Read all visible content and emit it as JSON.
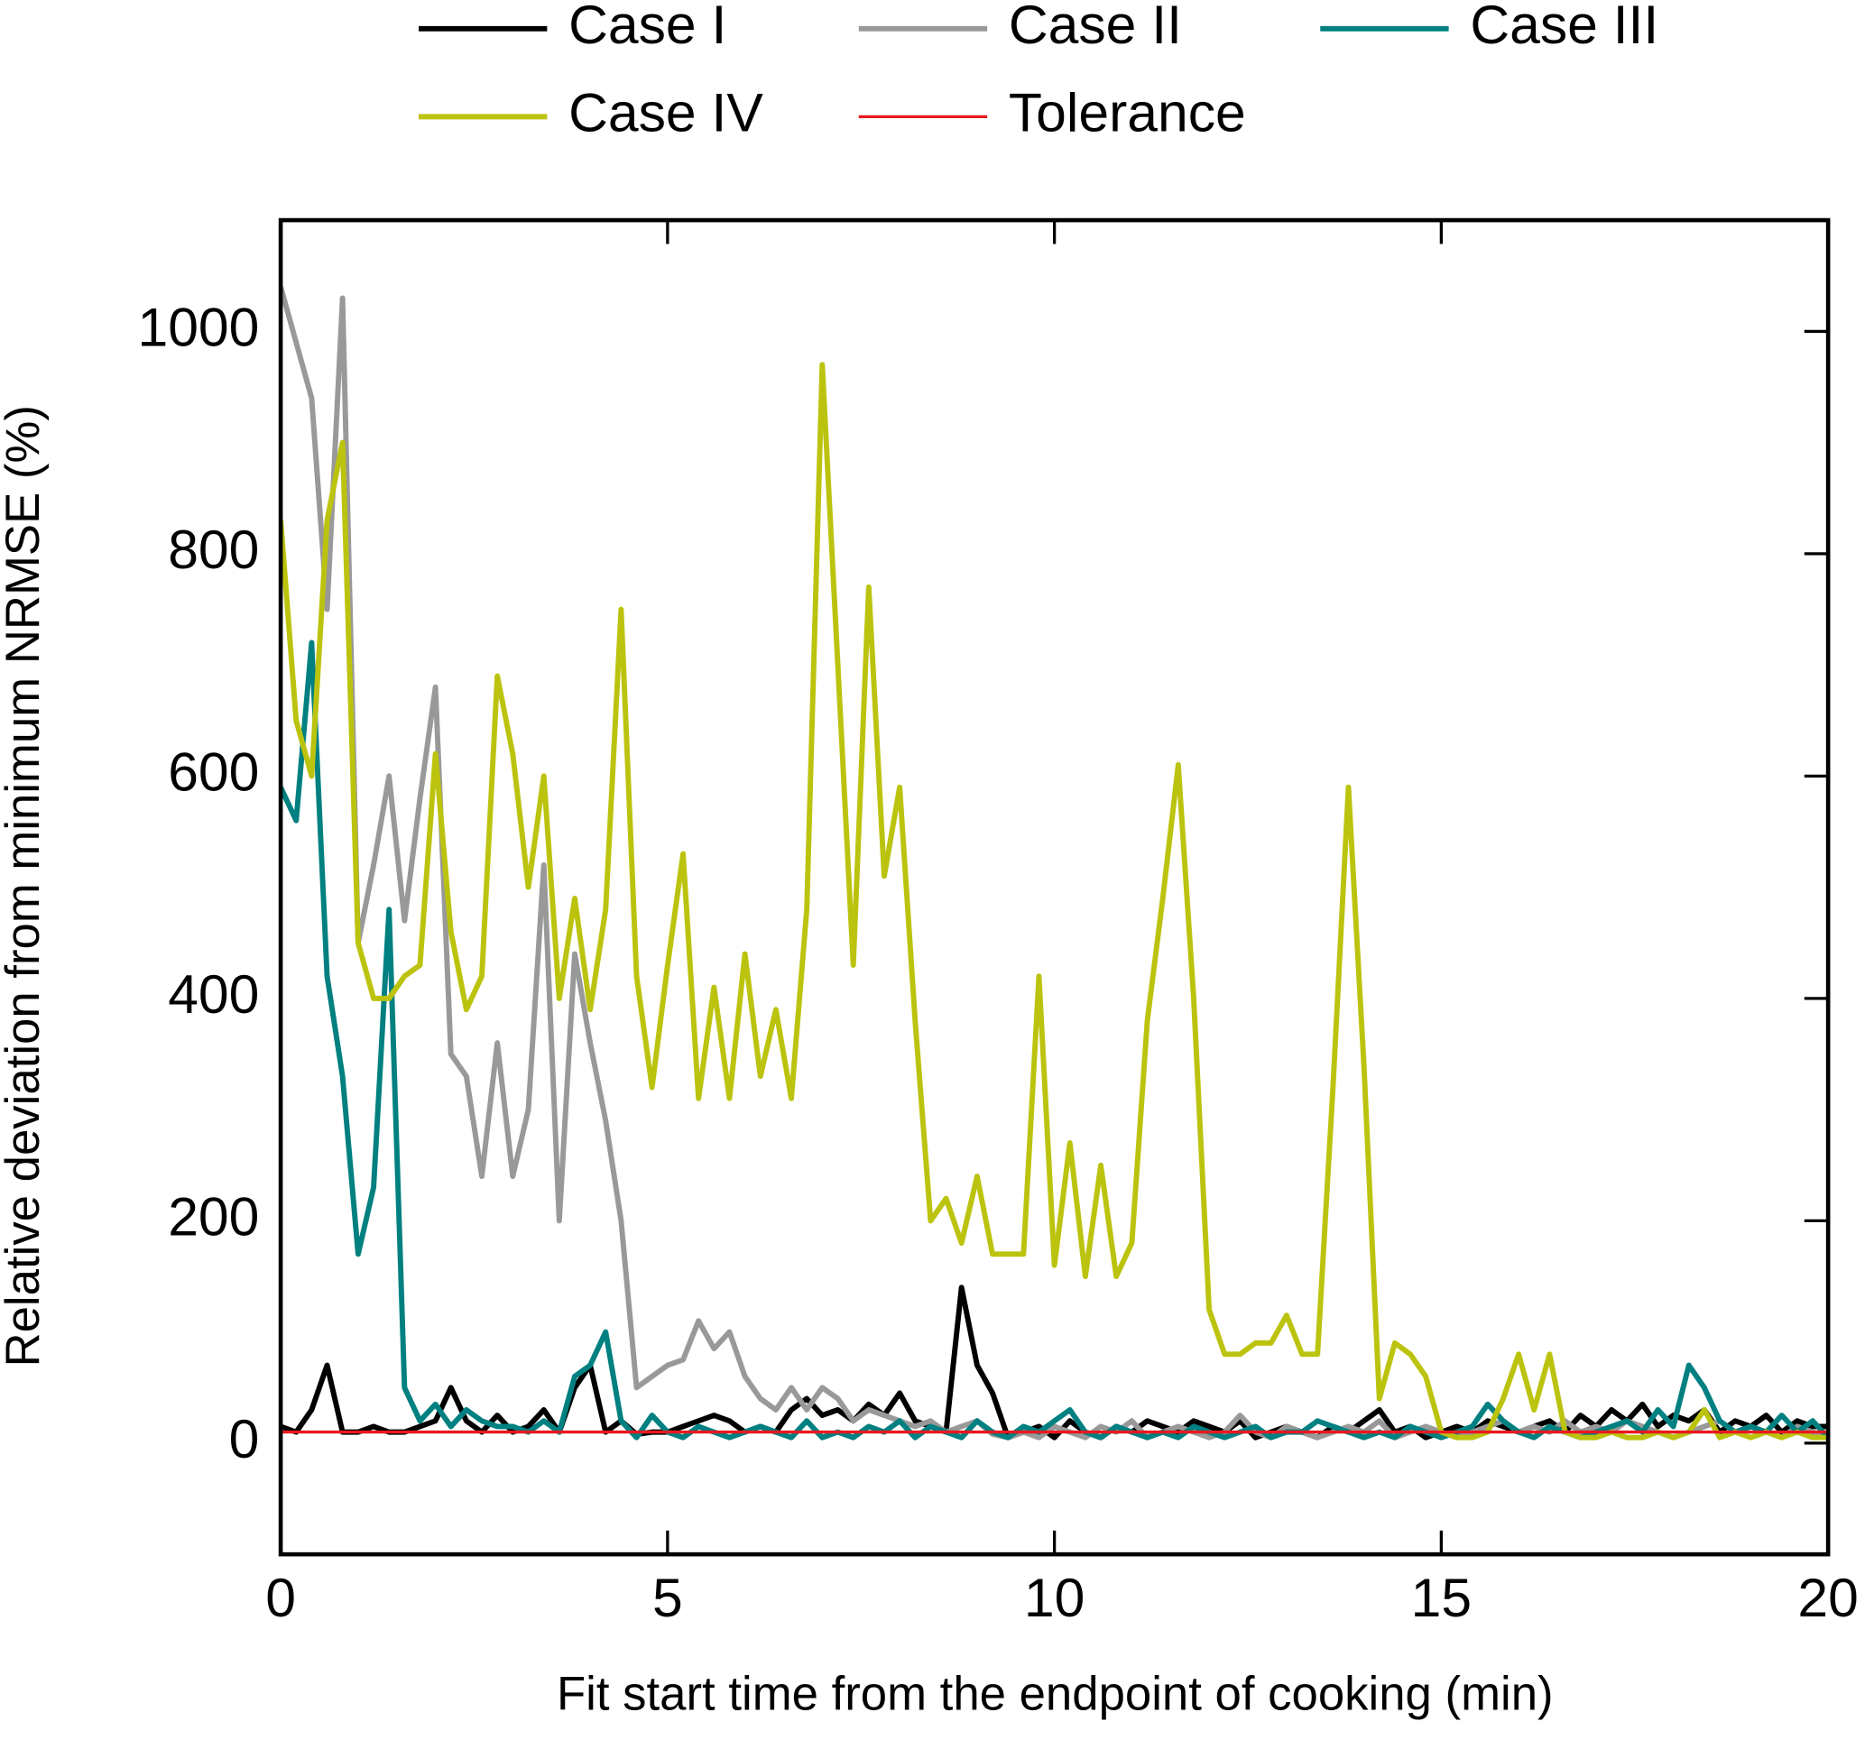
{
  "chart_data": {
    "type": "line",
    "xlabel": "Fit start time from the endpoint of cooking (min)",
    "ylabel": "Relative deviation from minimum NRMSE (%)",
    "x": [
      0,
      0.2,
      0.4,
      0.6,
      0.8,
      1,
      1.2,
      1.4,
      1.6,
      1.8,
      2,
      2.2,
      2.4,
      2.6,
      2.8,
      3,
      3.2,
      3.4,
      3.6,
      3.8,
      4,
      4.2,
      4.4,
      4.6,
      4.8,
      5,
      5.2,
      5.4,
      5.6,
      5.8,
      6,
      6.2,
      6.4,
      6.6,
      6.8,
      7,
      7.2,
      7.4,
      7.6,
      7.8,
      8,
      8.2,
      8.4,
      8.6,
      8.8,
      9,
      9.2,
      9.4,
      9.6,
      9.8,
      10,
      10.2,
      10.4,
      10.6,
      10.8,
      11,
      11.2,
      11.4,
      11.6,
      11.8,
      12,
      12.2,
      12.4,
      12.6,
      12.8,
      13,
      13.2,
      13.4,
      13.6,
      13.8,
      14,
      14.2,
      14.4,
      14.6,
      14.8,
      15,
      15.2,
      15.4,
      15.6,
      15.8,
      16,
      16.2,
      16.4,
      16.6,
      16.8,
      17,
      17.2,
      17.4,
      17.6,
      17.8,
      18,
      18.2,
      18.4,
      18.6,
      18.8,
      19,
      19.2,
      19.4,
      19.6,
      19.8,
      20
    ],
    "series": [
      {
        "name": "Case I",
        "color": "#000000",
        "values": [
          15,
          10,
          30,
          70,
          10,
          10,
          15,
          10,
          10,
          15,
          20,
          50,
          20,
          10,
          25,
          10,
          15,
          30,
          10,
          50,
          70,
          10,
          20,
          8,
          10,
          10,
          15,
          20,
          25,
          20,
          10,
          15,
          10,
          30,
          40,
          25,
          30,
          20,
          35,
          25,
          45,
          20,
          15,
          10,
          140,
          70,
          45,
          5,
          10,
          15,
          5,
          20,
          10,
          5,
          15,
          10,
          20,
          15,
          10,
          20,
          15,
          10,
          20,
          5,
          10,
          15,
          10,
          5,
          15,
          10,
          20,
          30,
          10,
          15,
          5,
          10,
          15,
          10,
          20,
          15,
          10,
          15,
          20,
          10,
          25,
          15,
          30,
          20,
          35,
          15,
          25,
          20,
          30,
          10,
          20,
          15,
          25,
          10,
          20,
          15,
          15
        ]
      },
      {
        "name": "Case II",
        "color": "#999999",
        "values": [
          1040,
          990,
          940,
          750,
          1030,
          450,
          520,
          600,
          470,
          580,
          680,
          350,
          330,
          240,
          360,
          240,
          300,
          520,
          200,
          440,
          360,
          290,
          200,
          50,
          60,
          70,
          75,
          110,
          85,
          100,
          60,
          40,
          30,
          50,
          30,
          50,
          40,
          20,
          30,
          25,
          20,
          15,
          20,
          10,
          15,
          20,
          8,
          5,
          10,
          5,
          15,
          10,
          5,
          15,
          10,
          20,
          5,
          10,
          15,
          10,
          5,
          10,
          25,
          10,
          5,
          15,
          10,
          5,
          10,
          15,
          10,
          20,
          5,
          10,
          15,
          10,
          5,
          10,
          15,
          20,
          10,
          15,
          10,
          20,
          10,
          15,
          10,
          20,
          15,
          10,
          5,
          10,
          15,
          20,
          10,
          15,
          10,
          5,
          15,
          10,
          5
        ]
      },
      {
        "name": "Case III",
        "color": "#008080",
        "values": [
          590,
          560,
          720,
          420,
          330,
          170,
          230,
          480,
          50,
          20,
          35,
          15,
          30,
          20,
          15,
          15,
          10,
          20,
          10,
          60,
          70,
          100,
          20,
          5,
          25,
          10,
          5,
          15,
          10,
          5,
          10,
          15,
          10,
          5,
          20,
          5,
          10,
          5,
          15,
          10,
          20,
          5,
          15,
          10,
          5,
          20,
          10,
          5,
          15,
          10,
          20,
          30,
          10,
          5,
          15,
          10,
          5,
          10,
          5,
          15,
          10,
          5,
          10,
          15,
          5,
          10,
          10,
          20,
          15,
          10,
          5,
          10,
          5,
          15,
          10,
          5,
          10,
          15,
          35,
          20,
          10,
          5,
          15,
          10,
          5,
          10,
          15,
          20,
          10,
          30,
          15,
          70,
          50,
          20,
          10,
          15,
          10,
          25,
          10,
          20,
          5
        ]
      },
      {
        "name": "Case IV",
        "color": "#bcc30e",
        "values": [
          830,
          650,
          600,
          830,
          900,
          450,
          400,
          400,
          420,
          430,
          620,
          460,
          390,
          420,
          690,
          620,
          500,
          600,
          400,
          490,
          390,
          480,
          750,
          420,
          320,
          430,
          530,
          310,
          410,
          310,
          440,
          330,
          390,
          310,
          480,
          970,
          700,
          430,
          770,
          510,
          590,
          380,
          200,
          220,
          180,
          240,
          170,
          170,
          170,
          420,
          160,
          270,
          150,
          250,
          150,
          180,
          380,
          490,
          610,
          400,
          120,
          80,
          80,
          90,
          90,
          115,
          80,
          80,
          320,
          590,
          340,
          40,
          90,
          80,
          60,
          10,
          5,
          5,
          10,
          40,
          80,
          30,
          80,
          10,
          5,
          5,
          10,
          5,
          5,
          10,
          5,
          10,
          30,
          5,
          10,
          5,
          10,
          5,
          10,
          5,
          5
        ]
      }
    ],
    "reference_line": {
      "name": "Tolerance",
      "value": 10,
      "color": "#e8191f"
    },
    "xlim": [
      0,
      20
    ],
    "xticks": [
      0,
      5,
      10,
      15,
      20
    ],
    "ylim": [
      -100,
      1100
    ],
    "yticks": [
      0,
      200,
      400,
      600,
      800,
      1000
    ],
    "grid": false
  }
}
